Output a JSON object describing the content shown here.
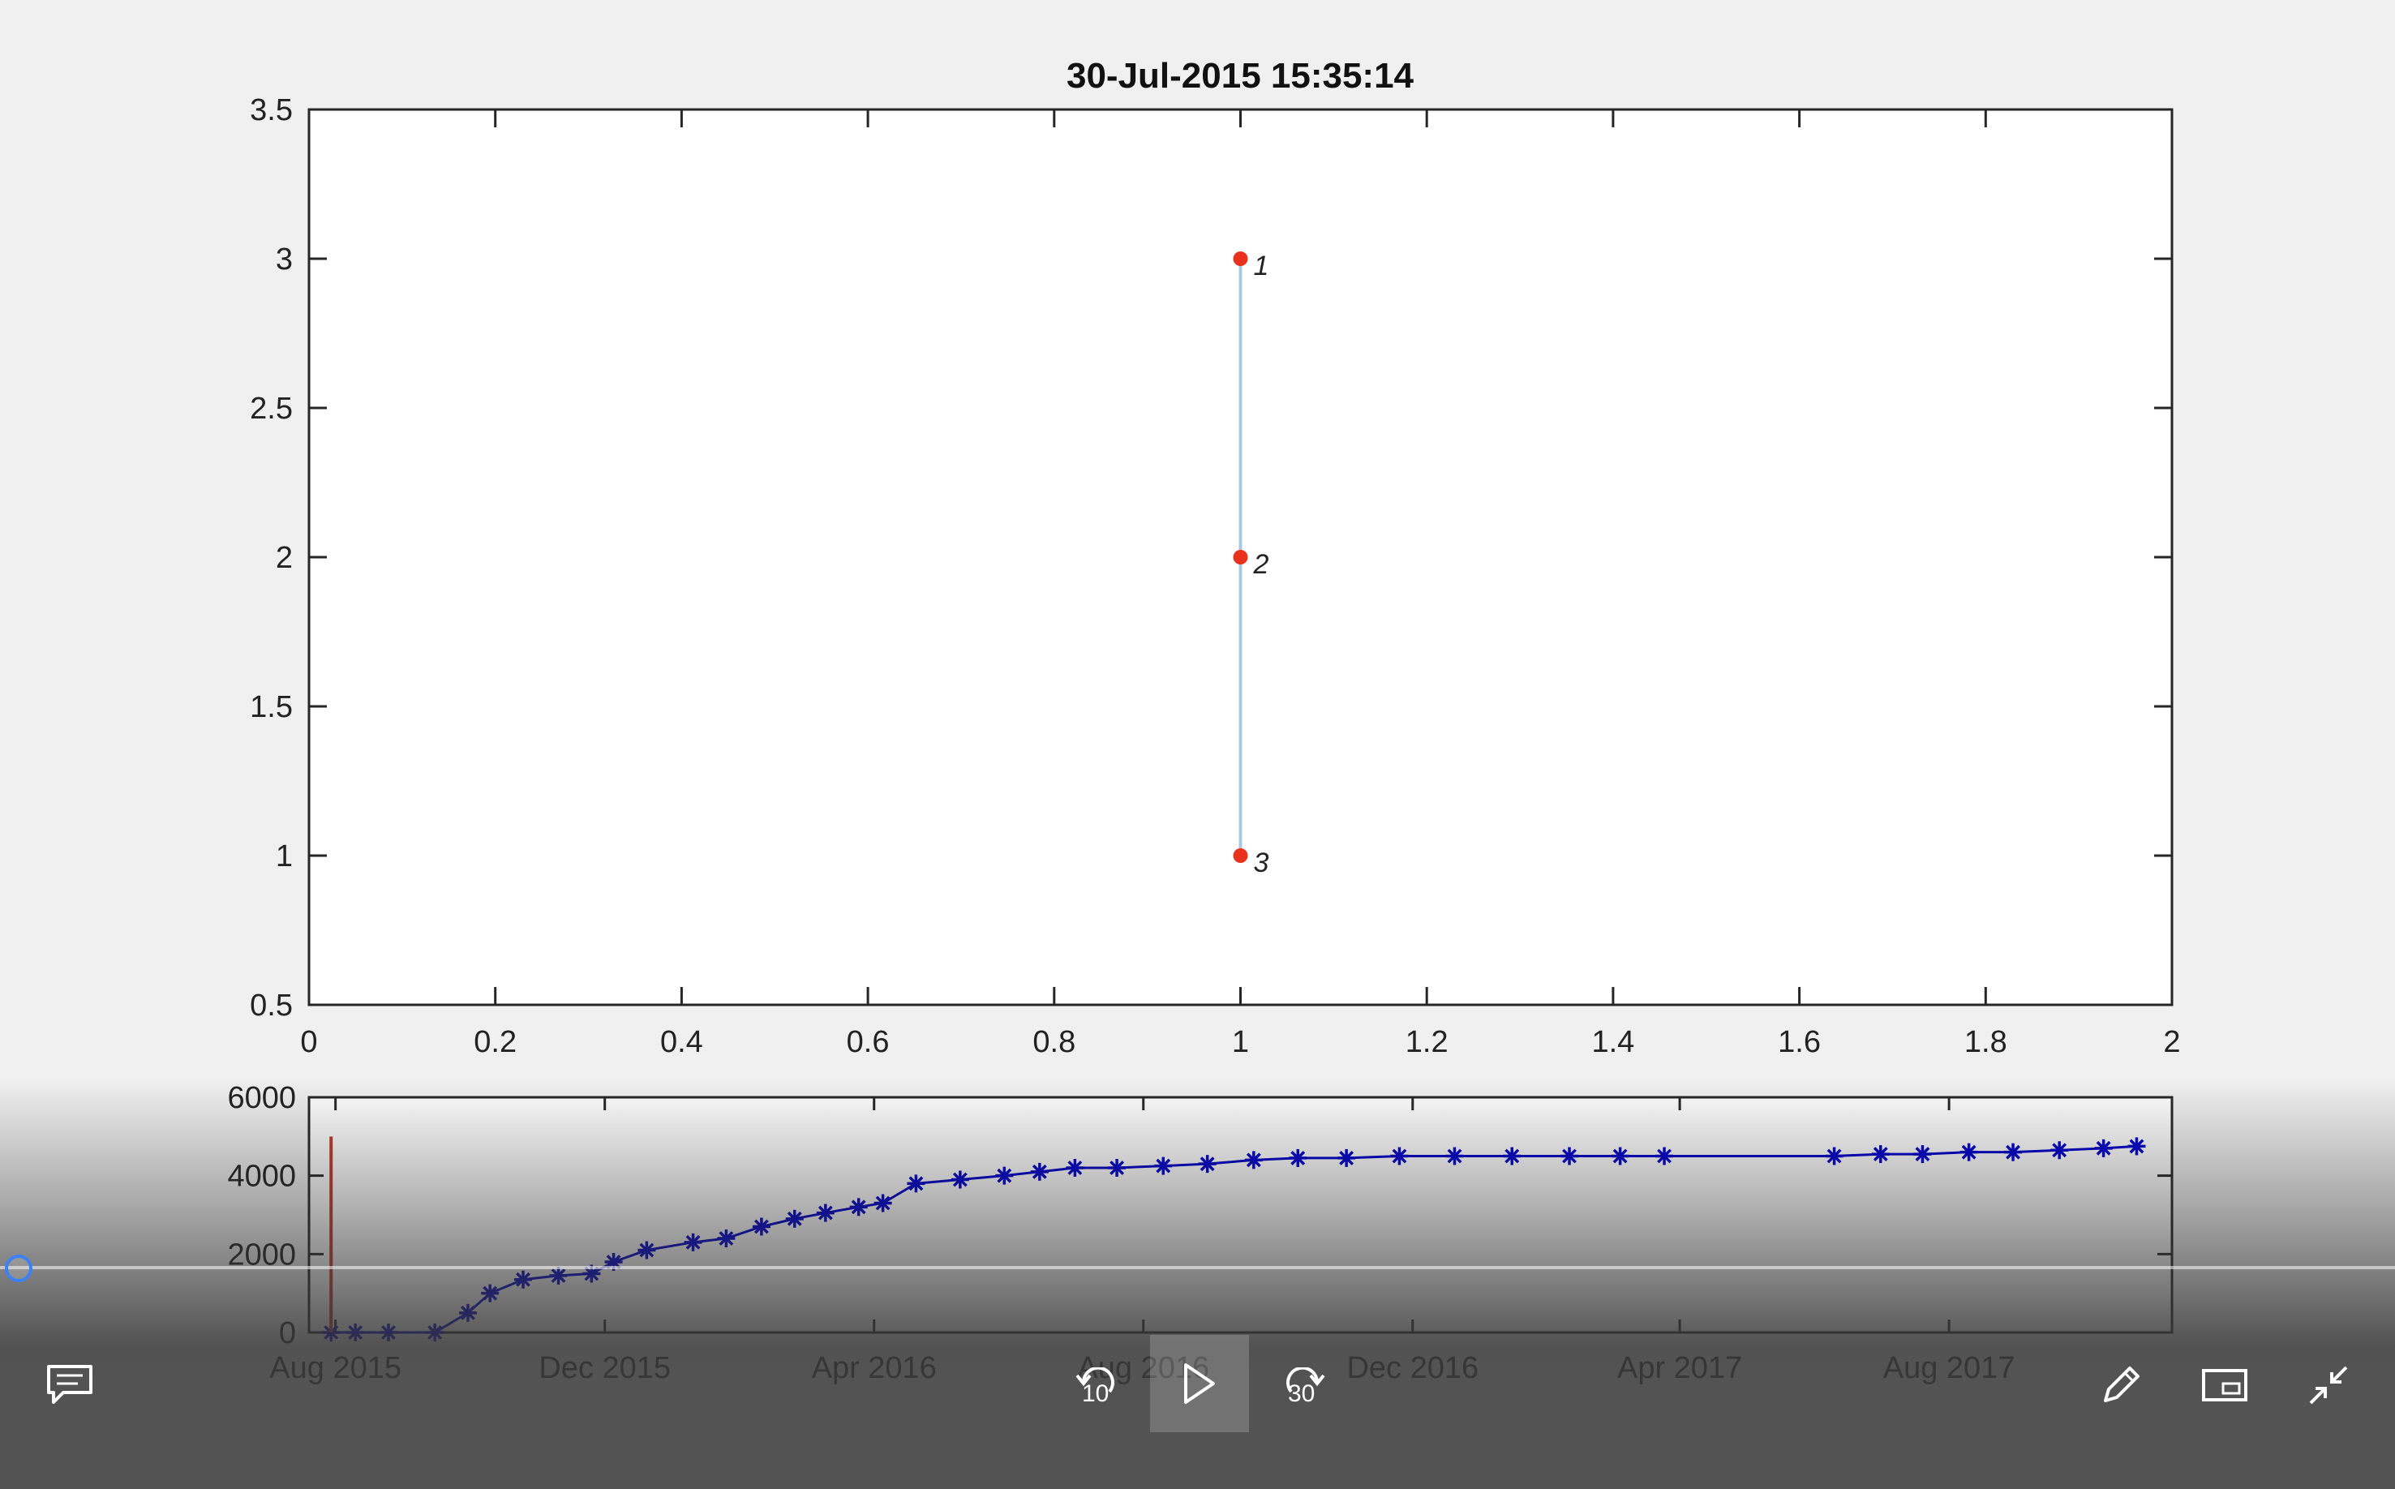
{
  "chart_data": [
    {
      "type": "scatter",
      "title": "30-Jul-2015 15:35:14",
      "xlim": [
        0,
        2
      ],
      "ylim": [
        0.5,
        3.5
      ],
      "x_ticks": [
        "0",
        "0.2",
        "0.4",
        "0.6",
        "0.8",
        "1",
        "1.2",
        "1.4",
        "1.6",
        "1.8",
        "2"
      ],
      "y_ticks": [
        "0.5",
        "1",
        "1.5",
        "2",
        "2.5",
        "3",
        "3.5"
      ],
      "points": [
        {
          "x": 1,
          "y": 3,
          "label": "1"
        },
        {
          "x": 1,
          "y": 2,
          "label": "2"
        },
        {
          "x": 1,
          "y": 1,
          "label": "3"
        }
      ],
      "line_connects": [
        [
          1,
          3
        ],
        [
          1,
          1
        ]
      ],
      "marker_color": "#e8321e",
      "line_color": "#a9c8e2",
      "grid": false
    },
    {
      "type": "line",
      "ylim": [
        0,
        6000
      ],
      "y_ticks": [
        "0",
        "2000",
        "4000",
        "6000"
      ],
      "x_ticks": [
        "Aug 2015",
        "Dec 2015",
        "Apr 2016",
        "Aug 2016",
        "Dec 2016",
        "Apr 2017",
        "Aug 2017"
      ],
      "x_range": [
        "2015-07-20",
        "2017-11-10"
      ],
      "cursor_date": "2015-07-30",
      "cursor_color": "#c0392b",
      "series_color": "#0000cc",
      "marker": "asterisk",
      "x": [
        "2015-07-30",
        "2015-08-10",
        "2015-08-25",
        "2015-09-15",
        "2015-09-30",
        "2015-10-10",
        "2015-10-25",
        "2015-11-10",
        "2015-11-25",
        "2015-12-05",
        "2015-12-20",
        "2016-01-10",
        "2016-01-25",
        "2016-02-10",
        "2016-02-25",
        "2016-03-10",
        "2016-03-25",
        "2016-04-05",
        "2016-04-20",
        "2016-05-10",
        "2016-05-30",
        "2016-06-15",
        "2016-07-01",
        "2016-07-20",
        "2016-08-10",
        "2016-08-30",
        "2016-09-20",
        "2016-10-10",
        "2016-11-01",
        "2016-11-25",
        "2016-12-20",
        "2017-01-15",
        "2017-02-10",
        "2017-03-05",
        "2017-03-25",
        "2017-06-10",
        "2017-07-01",
        "2017-07-20",
        "2017-08-10",
        "2017-08-30",
        "2017-09-20",
        "2017-10-10",
        "2017-10-25"
      ],
      "y": [
        0,
        0,
        0,
        0,
        500,
        1000,
        1350,
        1450,
        1500,
        1800,
        2100,
        2300,
        2400,
        2700,
        2900,
        3050,
        3200,
        3300,
        3800,
        3900,
        4000,
        4100,
        4200,
        4200,
        4250,
        4300,
        4400,
        4450,
        4450,
        4500,
        4500,
        4500,
        4500,
        4500,
        4500,
        4500,
        4550,
        4550,
        4600,
        4600,
        4650,
        4700,
        4750
      ]
    }
  ],
  "player": {
    "skip_back_label": "10",
    "skip_forward_label": "30",
    "captions_icon": "captions-icon",
    "play_icon": "play-icon",
    "pen_icon": "pen-icon",
    "pip_icon": "picture-in-picture-icon",
    "exit_fullscreen_icon": "exit-fullscreen-icon"
  }
}
